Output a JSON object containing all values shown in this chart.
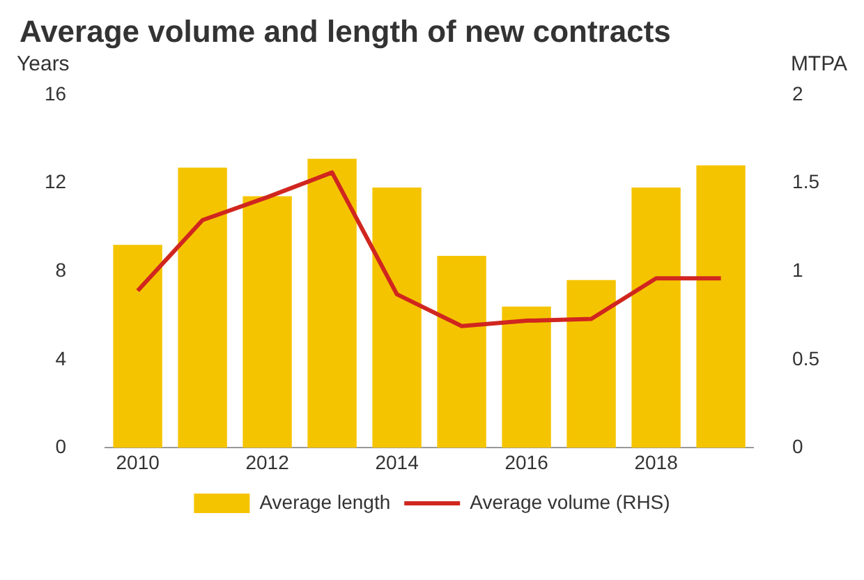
{
  "chart_data": {
    "type": "bar",
    "title": "Average volume and length of new contracts",
    "ylabel": "Years",
    "y2label": "MTPA",
    "categories": [
      "2010",
      null,
      "2012",
      null,
      "2014",
      null,
      "2016",
      null,
      "2018",
      null
    ],
    "series": [
      {
        "name": "Average length",
        "color": "#f5c400",
        "values": [
          9.2,
          12.7,
          11.4,
          13.1,
          11.8,
          8.7,
          6.4,
          7.6,
          11.8,
          12.8
        ]
      },
      {
        "name": "Average volume (RHS)",
        "type": "line",
        "axis": "y2",
        "color": "#d0261f",
        "values": [
          0.89,
          1.29,
          1.42,
          1.56,
          0.87,
          0.69,
          0.72,
          0.73,
          0.96,
          0.96
        ]
      }
    ],
    "ylim": [
      0,
      16
    ],
    "yticks": [
      0,
      4,
      8,
      12,
      16
    ],
    "y2lim": [
      0,
      2
    ],
    "y2ticks": [
      0,
      0.5,
      1,
      1.5,
      2
    ],
    "grid": false,
    "legend": "bottom",
    "marker": "none",
    "line_style": "solid"
  }
}
